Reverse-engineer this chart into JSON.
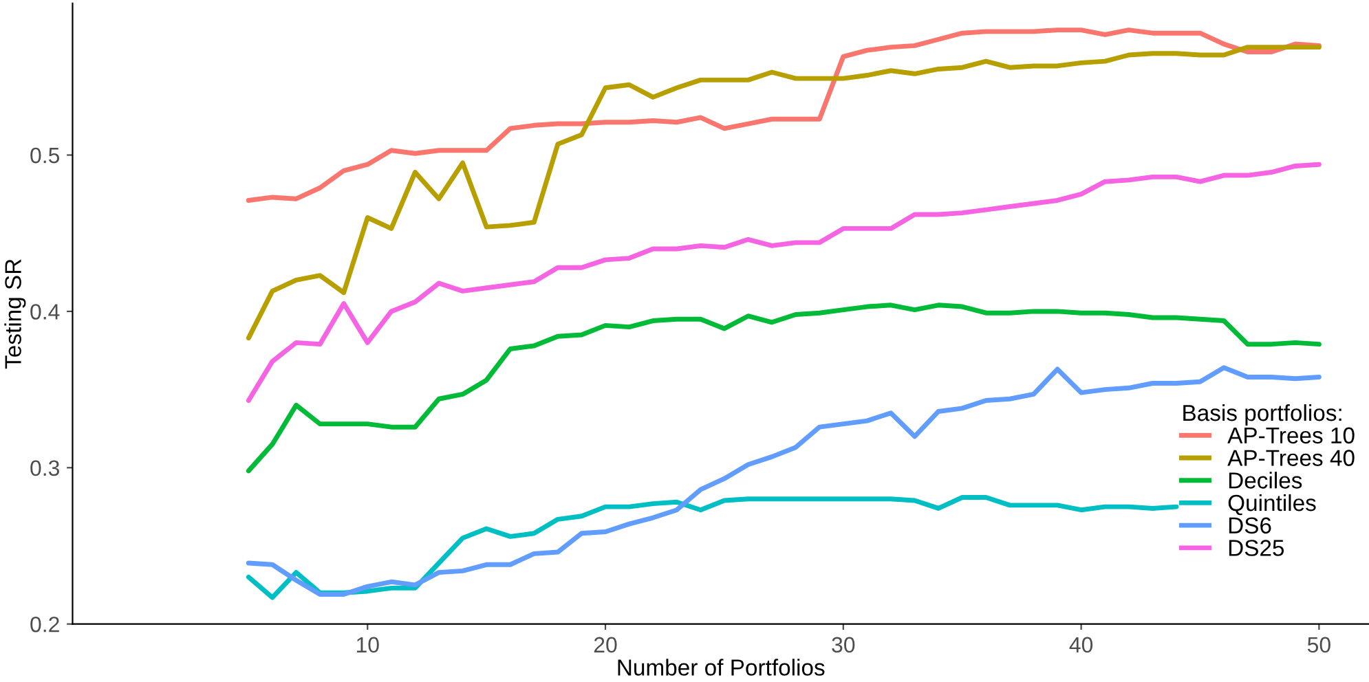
{
  "chart_data": {
    "type": "line",
    "xlabel": "Number of Portfolios",
    "ylabel": "Testing SR",
    "legend_title": "Basis portfolios:",
    "legend": "bottom right",
    "grid": false,
    "marker": "none",
    "line_style": "solid",
    "x": [
      5,
      6,
      7,
      8,
      9,
      10,
      11,
      12,
      13,
      14,
      15,
      16,
      17,
      18,
      19,
      20,
      21,
      22,
      23,
      24,
      25,
      26,
      27,
      28,
      29,
      30,
      31,
      32,
      33,
      34,
      35,
      36,
      37,
      38,
      39,
      40,
      41,
      42,
      43,
      44,
      45,
      46,
      47,
      48,
      49,
      50
    ],
    "xlim": [
      -2.4,
      52.1
    ],
    "xticks": [
      10,
      20,
      30,
      40,
      50
    ],
    "ylim": [
      0.2,
      0.597
    ],
    "yticks": [
      0.2,
      0.3,
      0.4,
      0.5
    ],
    "series": [
      {
        "name": "AP-Trees 10",
        "color": "#f8766d",
        "values": [
          0.471,
          0.473,
          0.472,
          0.479,
          0.49,
          0.494,
          0.503,
          0.501,
          0.503,
          0.503,
          0.503,
          0.517,
          0.519,
          0.52,
          0.52,
          0.521,
          0.521,
          0.522,
          0.521,
          0.524,
          0.517,
          0.52,
          0.523,
          0.523,
          0.523,
          0.563,
          0.567,
          0.569,
          0.57,
          0.574,
          0.578,
          0.579,
          0.579,
          0.579,
          0.58,
          0.58,
          0.577,
          0.58,
          0.578,
          0.578,
          0.578,
          0.571,
          0.566,
          0.566,
          0.571,
          0.57
        ]
      },
      {
        "name": "AP-Trees 40",
        "color": "#b79f00",
        "values": [
          0.383,
          0.413,
          0.42,
          0.423,
          0.412,
          0.46,
          0.453,
          0.489,
          0.472,
          0.495,
          0.454,
          0.455,
          0.457,
          0.507,
          0.513,
          0.543,
          0.545,
          0.537,
          0.543,
          0.548,
          0.548,
          0.548,
          0.553,
          0.549,
          0.549,
          0.549,
          0.551,
          0.554,
          0.552,
          0.555,
          0.556,
          0.56,
          0.556,
          0.557,
          0.557,
          0.559,
          0.56,
          0.564,
          0.565,
          0.565,
          0.564,
          0.564,
          0.569,
          0.569,
          0.569,
          0.569
        ]
      },
      {
        "name": "Deciles",
        "color": "#00ba38",
        "values": [
          0.298,
          0.315,
          0.34,
          0.328,
          0.328,
          0.328,
          0.326,
          0.326,
          0.344,
          0.347,
          0.356,
          0.376,
          0.378,
          0.384,
          0.385,
          0.391,
          0.39,
          0.394,
          0.395,
          0.395,
          0.389,
          0.397,
          0.393,
          0.398,
          0.399,
          0.401,
          0.403,
          0.404,
          0.401,
          0.404,
          0.403,
          0.399,
          0.399,
          0.4,
          0.4,
          0.399,
          0.399,
          0.398,
          0.396,
          0.396,
          0.395,
          0.394,
          0.379,
          0.379,
          0.38,
          0.379
        ]
      },
      {
        "name": "Quintiles",
        "color": "#00bfc4",
        "values": [
          0.23,
          0.217,
          0.233,
          0.22,
          0.22,
          0.221,
          0.223,
          0.223,
          0.239,
          0.255,
          0.261,
          0.256,
          0.258,
          0.267,
          0.269,
          0.275,
          0.275,
          0.277,
          0.278,
          0.273,
          0.279,
          0.28,
          0.28,
          0.28,
          0.28,
          0.28,
          0.28,
          0.28,
          0.279,
          0.274,
          0.281,
          0.281,
          0.276,
          0.276,
          0.276,
          0.273,
          0.275,
          0.275,
          0.274,
          0.275,
          null,
          null,
          null,
          null,
          null,
          null
        ]
      },
      {
        "name": "DS6",
        "color": "#619cff",
        "values": [
          0.239,
          0.238,
          0.228,
          0.219,
          0.219,
          0.224,
          0.227,
          0.225,
          0.233,
          0.234,
          0.238,
          0.238,
          0.245,
          0.246,
          0.258,
          0.259,
          0.264,
          0.268,
          0.273,
          0.286,
          0.293,
          0.302,
          0.307,
          0.313,
          0.326,
          0.328,
          0.33,
          0.335,
          0.32,
          0.336,
          0.338,
          0.343,
          0.344,
          0.347,
          0.363,
          0.348,
          0.35,
          0.351,
          0.354,
          0.354,
          0.355,
          0.364,
          0.358,
          0.358,
          0.357,
          0.358
        ]
      },
      {
        "name": "DS25",
        "color": "#f564e3",
        "values": [
          0.343,
          0.368,
          0.38,
          0.379,
          0.405,
          0.38,
          0.4,
          0.406,
          0.418,
          0.413,
          0.415,
          0.417,
          0.419,
          0.428,
          0.428,
          0.433,
          0.434,
          0.44,
          0.44,
          0.442,
          0.441,
          0.446,
          0.442,
          0.444,
          0.444,
          0.453,
          0.453,
          0.453,
          0.462,
          0.462,
          0.463,
          0.465,
          0.467,
          0.469,
          0.471,
          0.475,
          0.483,
          0.484,
          0.486,
          0.486,
          0.483,
          0.487,
          0.487,
          0.489,
          0.493,
          0.494
        ]
      }
    ]
  }
}
